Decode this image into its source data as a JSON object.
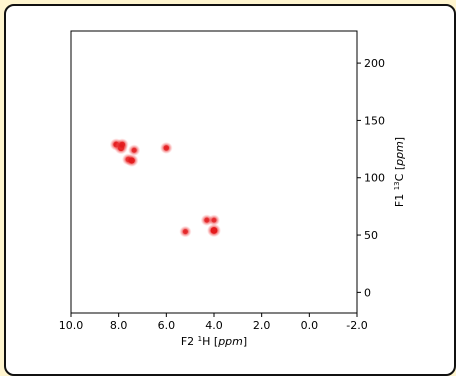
{
  "chart_data": {
    "type": "scatter",
    "subtype": "2D NMR HSQC spectrum",
    "xlabel": {
      "prefix": "F2 ",
      "sup": "1",
      "mid": "H [",
      "unit": "ppm",
      "suffix": "]"
    },
    "ylabel": {
      "prefix": "F1 ",
      "sup": "13",
      "mid": "C [",
      "unit": "ppm",
      "suffix": "]"
    },
    "xlim": [
      10.0,
      -2.0
    ],
    "ylim": [
      -18,
      228
    ],
    "x_ticks": [
      10.0,
      8.0,
      6.0,
      4.0,
      2.0,
      0.0,
      -2.0
    ],
    "x_tick_labels": [
      "10.0",
      "8.0",
      "6.0",
      "4.0",
      "2.0",
      "0.0",
      "-2.0"
    ],
    "y_ticks": [
      0,
      50,
      100,
      150,
      200
    ],
    "y_tick_labels": [
      "0",
      "50",
      "100",
      "150",
      "200"
    ],
    "y_axis_side": "right",
    "grid": false,
    "peak_color": "#e41a1c",
    "peaks": [
      {
        "x": 8.1,
        "y": 129,
        "intensity": 0.75
      },
      {
        "x": 7.9,
        "y": 126,
        "intensity": 0.85
      },
      {
        "x": 7.85,
        "y": 129,
        "intensity": 0.7
      },
      {
        "x": 7.35,
        "y": 124,
        "intensity": 0.55
      },
      {
        "x": 7.6,
        "y": 116,
        "intensity": 0.6
      },
      {
        "x": 7.45,
        "y": 115,
        "intensity": 0.85
      },
      {
        "x": 6.0,
        "y": 126,
        "intensity": 0.65
      },
      {
        "x": 5.2,
        "y": 53,
        "intensity": 0.55
      },
      {
        "x": 4.3,
        "y": 63,
        "intensity": 0.55
      },
      {
        "x": 4.0,
        "y": 63,
        "intensity": 0.5
      },
      {
        "x": 4.0,
        "y": 54,
        "intensity": 1.0
      }
    ]
  }
}
